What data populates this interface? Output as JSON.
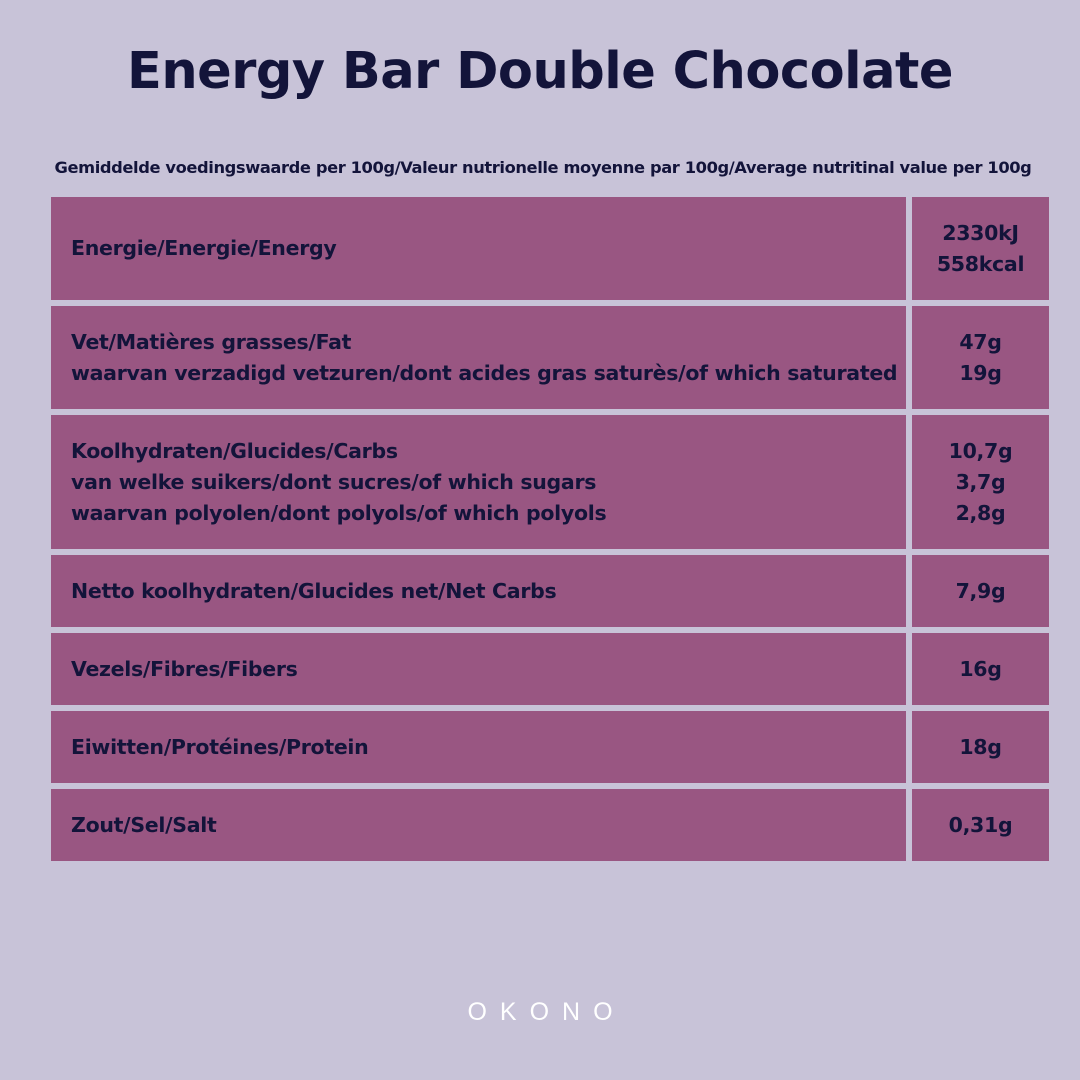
{
  "title": "Energy Bar Double Chocolate",
  "subtitle": "Gemiddelde voedingswaarde per 100g/Valeur nutrionelle moyenne par 100g/Average nutritinal value per 100g",
  "nutrition": [
    {
      "labels": [
        "Energie/Energie/Energy"
      ],
      "values": [
        "2330kJ",
        "558kcal"
      ]
    },
    {
      "labels": [
        "Vet/Matières grasses/Fat",
        "waarvan verzadigd vetzuren/dont acides gras saturès/of which saturated"
      ],
      "values": [
        "47g",
        "19g"
      ]
    },
    {
      "labels": [
        "Koolhydraten/Glucides/Carbs",
        "van welke suikers/dont sucres/of which sugars",
        "waarvan polyolen/dont polyols/of which polyols"
      ],
      "values": [
        "10,7g",
        "3,7g",
        "2,8g"
      ]
    },
    {
      "labels": [
        "Netto koolhydraten/Glucides net/Net Carbs"
      ],
      "values": [
        "7,9g"
      ]
    },
    {
      "labels": [
        "Vezels/Fibres/Fibers"
      ],
      "values": [
        "16g"
      ]
    },
    {
      "labels": [
        "Eiwitten/Protéines/Protein"
      ],
      "values": [
        "18g"
      ]
    },
    {
      "labels": [
        "Zout/Sel/Salt"
      ],
      "values": [
        "0,31g"
      ]
    }
  ],
  "brand": "OKONO",
  "colors": {
    "background": "#c8c3d8",
    "cell": "#995682",
    "text": "#13143a",
    "logo": "#ffffff"
  }
}
